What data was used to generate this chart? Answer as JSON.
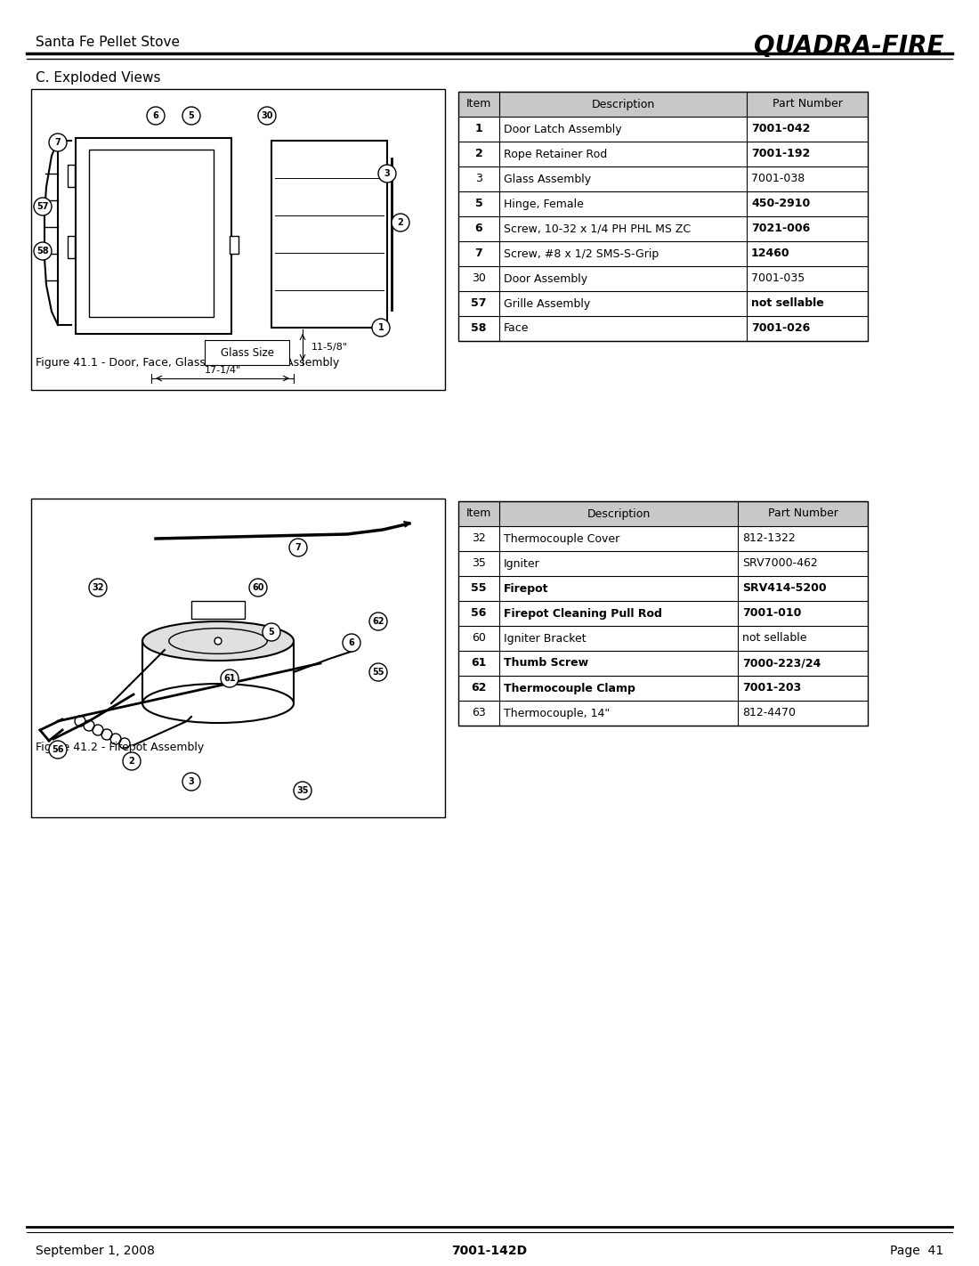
{
  "page_title_left": "Santa Fe Pellet Stove",
  "page_title_right": "QUADRA-FIRE",
  "section_title": "C. Exploded Views",
  "table1_header": [
    "Item",
    "Description",
    "Part Number"
  ],
  "table1_rows": [
    [
      "1",
      "Door Latch Assembly",
      "7001-042",
      true
    ],
    [
      "2",
      "Rope Retainer Rod",
      "7001-192",
      true
    ],
    [
      "3",
      "Glass Assembly",
      "7001-038",
      false
    ],
    [
      "5",
      "Hinge, Female",
      "450-2910",
      true
    ],
    [
      "6",
      "Screw, 10-32 x 1/4 PH PHL MS ZC",
      "7021-006",
      true
    ],
    [
      "7",
      "Screw, #8 x 1/2 SMS-S-Grip",
      "12460",
      true
    ],
    [
      "30",
      "Door Assembly",
      "7001-035",
      false
    ],
    [
      "57",
      "Grille Assembly",
      "not sellable",
      true
    ],
    [
      "58",
      "Face",
      "7001-026",
      true
    ]
  ],
  "fig1_caption": "Figure 41.1 - Door, Face, Glass & Door Latch Assembly",
  "table2_header": [
    "Item",
    "Description",
    "Part Number"
  ],
  "table2_rows": [
    [
      "32",
      "Thermocouple Cover",
      "812-1322",
      false
    ],
    [
      "35",
      "Igniter",
      "SRV7000-462",
      false
    ],
    [
      "55",
      "Firepot",
      "SRV414-5200",
      true
    ],
    [
      "56",
      "Firepot Cleaning Pull Rod",
      "7001-010",
      true
    ],
    [
      "60",
      "Igniter Bracket",
      "not sellable",
      false
    ],
    [
      "61",
      "Thumb Screw",
      "7000-223/24",
      true
    ],
    [
      "62",
      "Thermocouple Clamp",
      "7001-203",
      true
    ],
    [
      "63",
      "Thermocouple, 14\"",
      "812-4470",
      false
    ]
  ],
  "fig2_caption": "Figure 41.2 - Firepot Assembly",
  "footer_left": "September 1, 2008",
  "footer_center": "7001-142D",
  "footer_right": "Page  41",
  "header_color": "#c8c8c8",
  "table_border_color": "#000000",
  "bg_color": "#ffffff"
}
